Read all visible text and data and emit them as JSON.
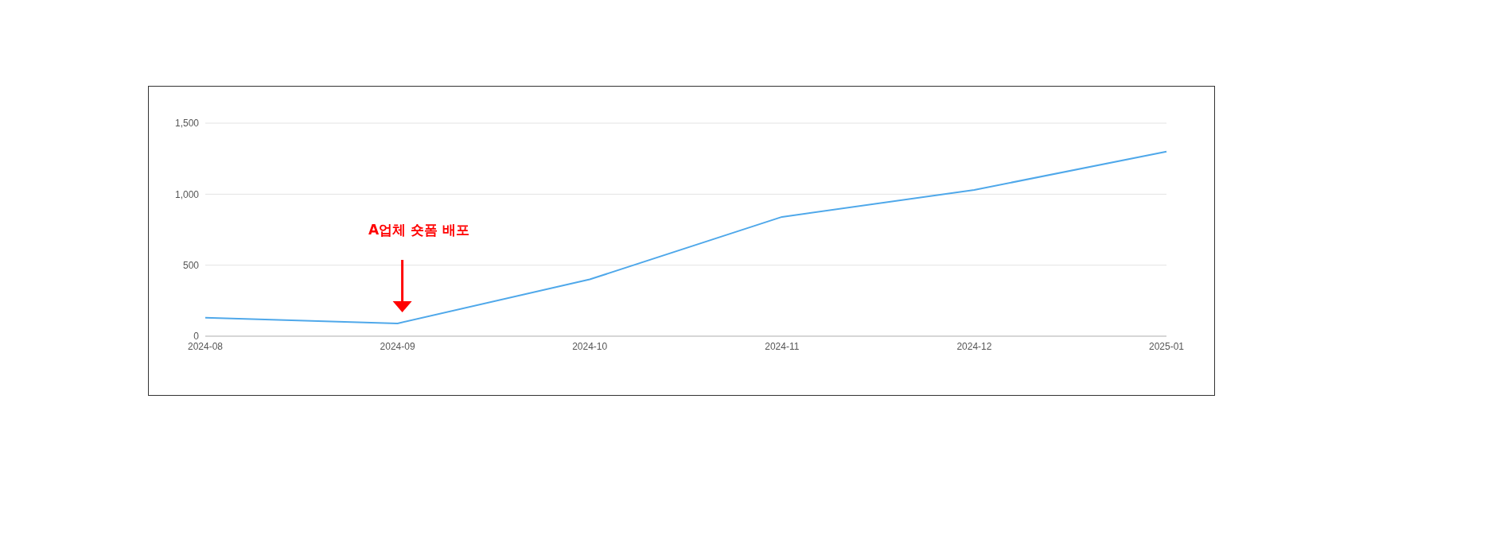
{
  "chart_data": {
    "type": "line",
    "categories": [
      "2024-08",
      "2024-09",
      "2024-10",
      "2024-11",
      "2024-12",
      "2025-01"
    ],
    "series": [
      {
        "color": "#4fa8ea",
        "values": [
          130,
          90,
          400,
          840,
          1030,
          1300
        ]
      }
    ],
    "ylim": [
      0,
      1500
    ],
    "yticks": [
      0,
      {
        "value": 500,
        "label": "500"
      },
      {
        "value": 1000,
        "label": "1,000"
      },
      {
        "value": 1500,
        "label": "1,500"
      }
    ],
    "grid": "y",
    "marker": "none",
    "annotations": [
      "A업체 숏폼 배포"
    ]
  }
}
